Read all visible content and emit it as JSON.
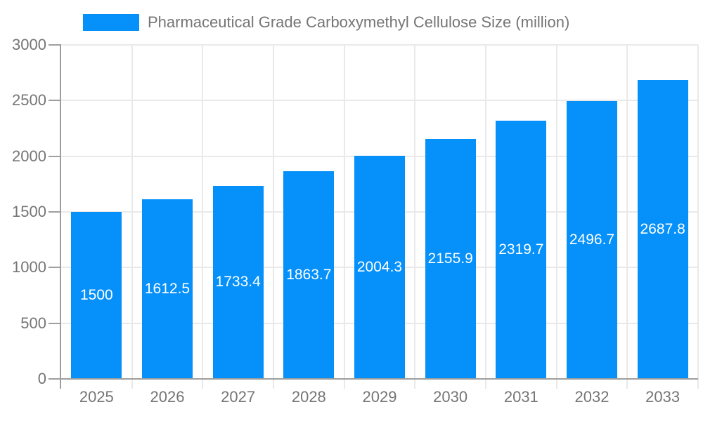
{
  "legend": {
    "label": "Pharmaceutical Grade Carboxymethyl Cellulose Size (million)"
  },
  "chart_data": {
    "type": "bar",
    "title": "Pharmaceutical Grade Carboxymethyl Cellulose Size (million)",
    "categories": [
      "2025",
      "2026",
      "2027",
      "2028",
      "2029",
      "2030",
      "2031",
      "2032",
      "2033"
    ],
    "values": [
      1500,
      1612.5,
      1733.4,
      1863.7,
      2004.3,
      2155.9,
      2319.7,
      2496.7,
      2687.8
    ],
    "value_labels": [
      "1500",
      "1612.5",
      "1733.4",
      "1863.7",
      "2004.3",
      "2155.9",
      "2319.7",
      "2496.7",
      "2687.8"
    ],
    "xlabel": "",
    "ylabel": "",
    "ylim": [
      0,
      3000
    ],
    "y_ticks": [
      0,
      500,
      1000,
      1500,
      2000,
      2500,
      3000
    ],
    "grid": true,
    "legend_position": "top",
    "value_label_position": "inside-center",
    "colors": {
      "bar": "#0590fa",
      "grid": "#e9e9e9",
      "axis": "#9e9e9e",
      "tick_text": "#757575",
      "value_text": "#ffffff",
      "legend_text": "#757575",
      "background": "#ffffff"
    }
  }
}
